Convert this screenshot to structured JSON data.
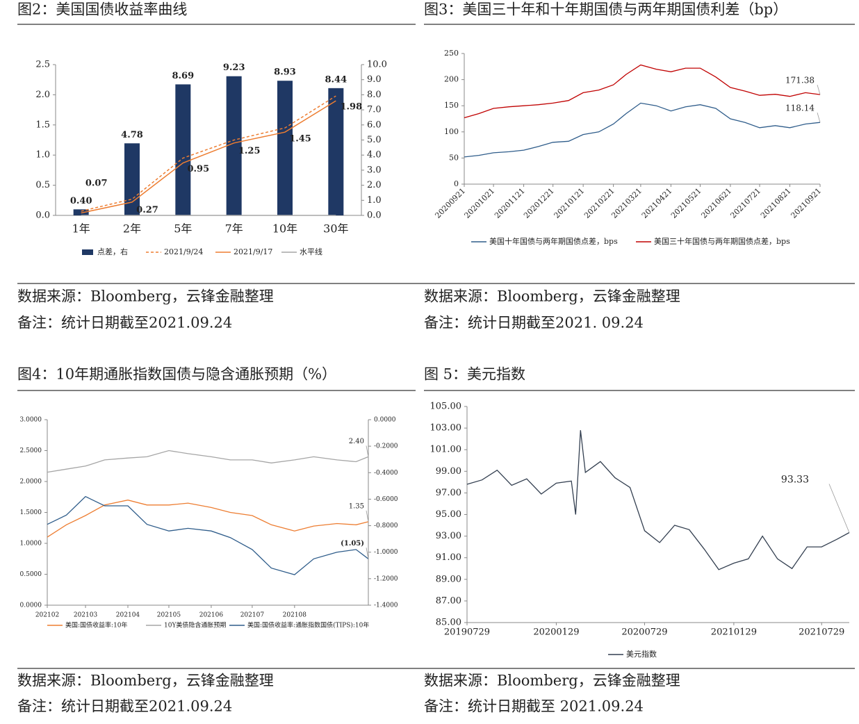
{
  "chart_data": [
    {
      "type": "bar",
      "title": "图2：美国国债收益率曲线",
      "categories": [
        "1年",
        "2年",
        "5年",
        "7年",
        "10年",
        "30年"
      ],
      "series": [
        {
          "name": "点差，右",
          "type": "bar",
          "axis": "y2",
          "color": "#1f3864",
          "values": [
            0.4,
            4.78,
            8.69,
            9.23,
            8.93,
            8.44
          ],
          "value_labels": [
            "0.40",
            "4.78",
            "8.69",
            "9.23",
            "8.93",
            "8.44"
          ]
        },
        {
          "name": "2021/9/24",
          "type": "line",
          "dash": true,
          "color": "#ed7d31",
          "values": [
            0.07,
            0.27,
            0.95,
            1.25,
            1.45,
            1.98
          ],
          "value_labels": [
            "0.07",
            "0.27",
            "0.95",
            "1.25",
            "1.45",
            "1.98"
          ]
        },
        {
          "name": "2021/9/17",
          "type": "line",
          "color": "#ed7d31",
          "values": [
            0.04,
            0.22,
            0.87,
            1.2,
            1.38,
            1.9
          ]
        },
        {
          "name": "水平线",
          "type": "line",
          "color": "#a5a5a5",
          "values": [
            0,
            0,
            0,
            0,
            0,
            0
          ]
        }
      ],
      "ylim": [
        0,
        2.5
      ],
      "yticks": [
        {
          "value": 0,
          "label": "0.0"
        },
        {
          "value": 0.5,
          "label": "0.5"
        },
        {
          "value": 1,
          "label": "1.0"
        },
        {
          "value": 1.5,
          "label": "1.5"
        },
        {
          "value": 2,
          "label": "2.0"
        },
        {
          "value": 2.5,
          "label": "2.5"
        }
      ],
      "y2lim": [
        0,
        10
      ],
      "y2ticks": [
        {
          "value": 0,
          "label": "0.0"
        },
        {
          "value": 1,
          "label": "1.0"
        },
        {
          "value": 2,
          "label": "2.0"
        },
        {
          "value": 3,
          "label": "3.0"
        },
        {
          "value": 4,
          "label": "4.0"
        },
        {
          "value": 5,
          "label": "5.0"
        },
        {
          "value": 6,
          "label": "6.0"
        },
        {
          "value": 7,
          "label": "7.0"
        },
        {
          "value": 8,
          "label": "8.0"
        },
        {
          "value": 9,
          "label": "9.0"
        },
        {
          "value": 10,
          "label": "10.0"
        }
      ],
      "source": "数据来源：Bloomberg，云锋金融整理",
      "note": "备注：统计日期截至2021.09.24"
    },
    {
      "type": "line",
      "title": "图3：美国三十年和十年期国债与两年期国债利差（bp）",
      "x": [
        "20200921",
        "20201006",
        "20201021",
        "20201106",
        "20201121",
        "20201206",
        "20201221",
        "20210106",
        "20210121",
        "20210206",
        "20210221",
        "20210306",
        "20210321",
        "20210406",
        "20210421",
        "20210506",
        "20210521",
        "20210606",
        "20210621",
        "20210706",
        "20210721",
        "20210806",
        "20210821",
        "20210906",
        "20210921"
      ],
      "series": [
        {
          "name": "美国十年国债与两年期国债点差，bps",
          "color": "#2e5c8a",
          "values": [
            52,
            55,
            60,
            62,
            65,
            72,
            80,
            82,
            95,
            100,
            115,
            135,
            155,
            150,
            140,
            148,
            152,
            145,
            125,
            118,
            108,
            112,
            108,
            115,
            118.14
          ],
          "end_label": "118.14"
        },
        {
          "name": "美国三十年国债与两年期国债点差，bps",
          "color": "#c00000",
          "values": [
            127,
            135,
            145,
            148,
            150,
            152,
            155,
            160,
            175,
            180,
            190,
            210,
            228,
            220,
            215,
            222,
            222,
            205,
            185,
            178,
            170,
            172,
            168,
            175,
            171.38
          ],
          "end_label": "171.38"
        }
      ],
      "xlim": [
        "20200921",
        "20210921"
      ],
      "xticks": [
        "20200921",
        "20201021",
        "20201121",
        "20201221",
        "20210121",
        "20210221",
        "20210321",
        "20210421",
        "20210521",
        "20210621",
        "20210721",
        "20210821",
        "20210921"
      ],
      "ylim": [
        0,
        250
      ],
      "yticks": [
        0,
        50,
        100,
        150,
        200,
        250
      ],
      "source": "数据来源：Bloomberg，云锋金融整理",
      "note": "备注：统计日期截至2021. 09.24"
    },
    {
      "type": "line",
      "title": "图4：10年期通胀指数国债与隐含通胀预期（%）",
      "x": [
        "20210201",
        "20210215",
        "20210301",
        "20210315",
        "20210401",
        "20210415",
        "20210501",
        "20210515",
        "20210601",
        "20210615",
        "20210701",
        "20210715",
        "20210801",
        "20210815",
        "20210901",
        "20210915",
        "20210924"
      ],
      "series": [
        {
          "name": "美国:国债收益率:10年",
          "color": "#ed7d31",
          "values": [
            1.1,
            1.3,
            1.45,
            1.62,
            1.7,
            1.62,
            1.62,
            1.65,
            1.58,
            1.5,
            1.45,
            1.3,
            1.2,
            1.28,
            1.32,
            1.3,
            1.35
          ],
          "end_label": "1.35"
        },
        {
          "name": "10Y美债隐含通胀预期",
          "color": "#a5a5a5",
          "values": [
            2.15,
            2.2,
            2.25,
            2.35,
            2.38,
            2.4,
            2.5,
            2.45,
            2.4,
            2.35,
            2.35,
            2.3,
            2.35,
            2.4,
            2.35,
            2.32,
            2.4
          ],
          "end_label": "2.40"
        },
        {
          "name": "美国:国债收益率:通胀指数国债(TIPS):10年",
          "axis": "y2",
          "color": "#2e5c8a",
          "label_color": "#e00000",
          "values": [
            -0.79,
            -0.72,
            -0.58,
            -0.65,
            -0.65,
            -0.79,
            -0.84,
            -0.82,
            -0.84,
            -0.89,
            -0.98,
            -1.12,
            -1.17,
            -1.05,
            -1.0,
            -0.98,
            -1.05
          ],
          "end_label": "(1.05)"
        }
      ],
      "xlim": [
        "20210201",
        "20210924"
      ],
      "xticks": [
        {
          "value": "20210201",
          "label": "202102"
        },
        {
          "value": "20210301",
          "label": "202103"
        },
        {
          "value": "20210401",
          "label": "202104"
        },
        {
          "value": "20210501",
          "label": "202105"
        },
        {
          "value": "20210601",
          "label": "202106"
        },
        {
          "value": "20210701",
          "label": "202107"
        },
        {
          "value": "20210801",
          "label": "202108"
        }
      ],
      "ylim": [
        0,
        3
      ],
      "yticks": [
        {
          "value": 0,
          "label": "0.0000"
        },
        {
          "value": 0.5,
          "label": "0.5000"
        },
        {
          "value": 1,
          "label": "1.0000"
        },
        {
          "value": 1.5,
          "label": "1.5000"
        },
        {
          "value": 2,
          "label": "2.0000"
        },
        {
          "value": 2.5,
          "label": "2.5000"
        },
        {
          "value": 3,
          "label": "3.0000"
        }
      ],
      "y2lim": [
        -1.4,
        0
      ],
      "y2ticks": [
        {
          "value": 0,
          "label": "0.0000"
        },
        {
          "value": -0.2,
          "label": "-0.2000"
        },
        {
          "value": -0.4,
          "label": "-0.4000"
        },
        {
          "value": -0.6,
          "label": "-0.6000"
        },
        {
          "value": -0.8,
          "label": "-0.8000"
        },
        {
          "value": -1,
          "label": "-1.0000"
        },
        {
          "value": -1.2,
          "label": "-1.2000"
        },
        {
          "value": -1.4,
          "label": "-1.4000"
        }
      ],
      "source": "数据来源：Bloomberg，云锋金融整理",
      "note": "备注：统计日期截至2021.09.24"
    },
    {
      "type": "line",
      "title": "图 5：美元指数",
      "x": [
        "20190729",
        "20190829",
        "20190929",
        "20191029",
        "20191129",
        "20191229",
        "20200129",
        "20200229",
        "20200309",
        "20200319",
        "20200329",
        "20200429",
        "20200529",
        "20200629",
        "20200729",
        "20200829",
        "20200929",
        "20201029",
        "20201129",
        "20201229",
        "20210129",
        "20210228",
        "20210329",
        "20210429",
        "20210529",
        "20210629",
        "20210729",
        "20210829",
        "20210924"
      ],
      "series": [
        {
          "name": "美元指数",
          "color": "#333f50",
          "values": [
            97.8,
            98.2,
            99.1,
            97.7,
            98.3,
            96.9,
            97.9,
            98.1,
            95.0,
            102.8,
            98.9,
            99.9,
            98.4,
            97.5,
            93.5,
            92.4,
            94.0,
            93.6,
            91.8,
            89.9,
            90.5,
            90.9,
            93.0,
            90.9,
            90.0,
            92.0,
            92.0,
            92.7,
            93.33
          ],
          "end_label": "93.33"
        }
      ],
      "xlim": [
        "20190729",
        "20210924"
      ],
      "xticks": [
        "20190729",
        "20200129",
        "20200729",
        "20210129",
        "20210729"
      ],
      "ylim": [
        85,
        105
      ],
      "yticks": [
        {
          "value": 85,
          "label": "85.00"
        },
        {
          "value": 87,
          "label": "87.00"
        },
        {
          "value": 89,
          "label": "89.00"
        },
        {
          "value": 91,
          "label": "91.00"
        },
        {
          "value": 93,
          "label": "93.00"
        },
        {
          "value": 95,
          "label": "95.00"
        },
        {
          "value": 97,
          "label": "97.00"
        },
        {
          "value": 99,
          "label": "99.00"
        },
        {
          "value": 101,
          "label": "101.00"
        },
        {
          "value": 103,
          "label": "103.00"
        },
        {
          "value": 105,
          "label": "105.00"
        }
      ],
      "source": "数据来源：Bloomberg，云锋金融整理",
      "note": "备注：统计日期截至 2021.09.24"
    }
  ]
}
